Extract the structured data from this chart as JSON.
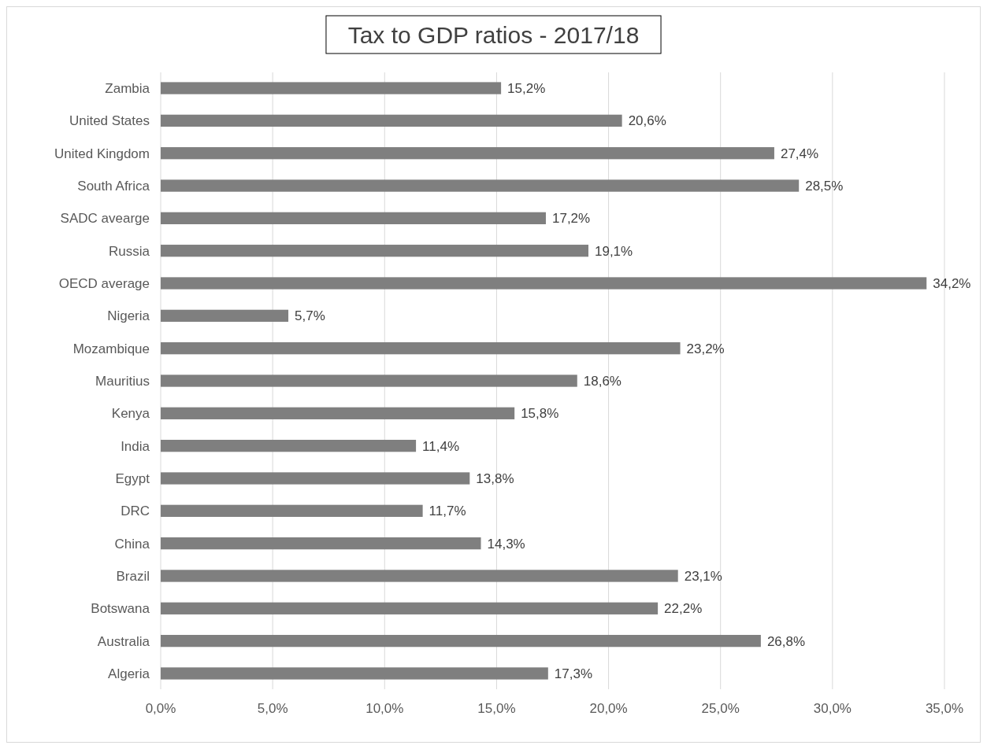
{
  "chart_data": {
    "type": "bar",
    "orientation": "horizontal",
    "title": "Tax to GDP ratios - 2017/18",
    "categories": [
      "Zambia",
      "United States",
      "United Kingdom",
      "South Africa",
      "SADC avearge",
      "Russia",
      "OECD average",
      "Nigeria",
      "Mozambique",
      "Mauritius",
      "Kenya",
      "India",
      "Egypt",
      "DRC",
      "China",
      "Brazil",
      "Botswana",
      "Australia",
      "Algeria"
    ],
    "values": [
      15.2,
      20.6,
      27.4,
      28.5,
      17.2,
      19.1,
      34.2,
      5.7,
      23.2,
      18.6,
      15.8,
      11.4,
      13.8,
      11.7,
      14.3,
      23.1,
      22.2,
      26.8,
      17.3
    ],
    "value_labels": [
      "15,2%",
      "20,6%",
      "27,4%",
      "28,5%",
      "17,2%",
      "19,1%",
      "34,2%",
      "5,7%",
      "23,2%",
      "18,6%",
      "15,8%",
      "11,4%",
      "13,8%",
      "11,7%",
      "14,3%",
      "23,1%",
      "22,2%",
      "26,8%",
      "17,3%"
    ],
    "color": "#7f7f7f",
    "xlim": [
      0,
      35
    ],
    "xticks": [
      {
        "value": 0,
        "label": "0,0%"
      },
      {
        "value": 5,
        "label": "5,0%"
      },
      {
        "value": 10,
        "label": "10,0%"
      },
      {
        "value": 15,
        "label": "15,0%"
      },
      {
        "value": 20,
        "label": "20,0%"
      },
      {
        "value": 25,
        "label": "25,0%"
      },
      {
        "value": 30,
        "label": "30,0%"
      },
      {
        "value": 35,
        "label": "35,0%"
      }
    ],
    "grid": "x"
  }
}
